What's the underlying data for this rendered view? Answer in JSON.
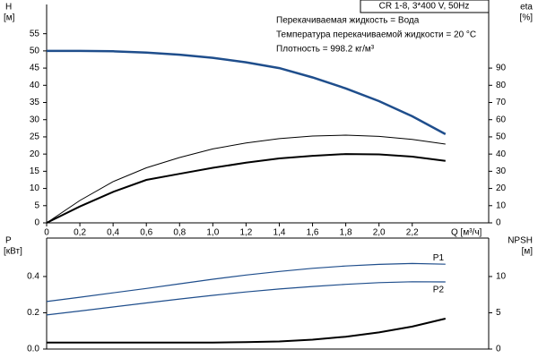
{
  "chart_data": [
    {
      "type": "line",
      "title": "CR 1-8, 3*400 V, 50Hz",
      "annotations": [
        "Перекачиваемая жидкость = Вода",
        "Температура перекачиваемой жидкости = 20 °C",
        "Плотность = 998.2 кг/м³"
      ],
      "ylabel": "H",
      "yunit": "[м]",
      "y2label": "eta",
      "y2unit": "[%]",
      "xlabel": "Q [м³/ч]",
      "xlim": [
        0,
        2.66
      ],
      "ylim": [
        0,
        63.5
      ],
      "y2lim": [
        0,
        127
      ],
      "xticks": [
        0,
        {
          "value": 0.2,
          "label": "0,2"
        },
        {
          "value": 0.4,
          "label": "0,4"
        },
        {
          "value": 0.6,
          "label": "0,6"
        },
        {
          "value": 0.8,
          "label": "0,8"
        },
        {
          "value": 1.0,
          "label": "1,0"
        },
        {
          "value": 1.2,
          "label": "1,2"
        },
        {
          "value": 1.4,
          "label": "1,4"
        },
        {
          "value": 1.6,
          "label": "1,6"
        },
        {
          "value": 1.8,
          "label": "1,8"
        },
        {
          "value": 2.0,
          "label": "2,0"
        },
        {
          "value": 2.2,
          "label": "2,2"
        }
      ],
      "yticks": [
        0,
        5,
        10,
        15,
        20,
        25,
        30,
        35,
        40,
        45,
        50,
        55
      ],
      "y2ticks": [
        0,
        10,
        20,
        30,
        40,
        50,
        60,
        70,
        80,
        90
      ],
      "series": [
        {
          "color": "#1f4e8c",
          "x": [
            0,
            0.2,
            0.4,
            0.6,
            0.8,
            1.0,
            1.2,
            1.4,
            1.6,
            1.8,
            2.0,
            2.2,
            2.4
          ],
          "values": [
            50,
            50,
            49.9,
            49.5,
            48.9,
            48,
            46.7,
            45,
            42.3,
            39.1,
            35.4,
            31,
            25.8
          ]
        },
        {
          "color": "#000000",
          "axis": "y2",
          "x": [
            0,
            0.2,
            0.4,
            0.6,
            0.8,
            1.0,
            1.2,
            1.4,
            1.6,
            1.8,
            2.0,
            2.2,
            2.4
          ],
          "values": [
            0,
            13,
            24,
            32,
            38,
            43,
            46.5,
            49,
            50.5,
            51,
            50.3,
            48.5,
            45.8
          ]
        },
        {
          "color": "#000000",
          "axis": "y2",
          "x": [
            0,
            0.2,
            0.4,
            0.6,
            0.8,
            1.0,
            1.2,
            1.4,
            1.6,
            1.8,
            2.0,
            2.2,
            2.4
          ],
          "values": [
            0,
            9.5,
            18,
            25,
            28.5,
            32,
            35,
            37.5,
            39,
            40,
            39.8,
            38.5,
            36
          ]
        }
      ]
    },
    {
      "type": "line",
      "ylabel": "P",
      "yunit": "[кВт]",
      "y2label": "NPSH",
      "y2unit": "[м]",
      "xlim": [
        0,
        2.66
      ],
      "ylim": [
        0,
        0.612
      ],
      "y2lim": [
        0,
        15.3
      ],
      "yticks": [
        {
          "value": 0,
          "label": "0.0"
        },
        0.2,
        0.4
      ],
      "y2ticks": [
        0,
        5,
        10
      ],
      "series": [
        {
          "name": "P1",
          "color": "#1f4e8c",
          "x": [
            0,
            0.2,
            0.4,
            0.6,
            0.8,
            1.0,
            1.2,
            1.4,
            1.6,
            1.8,
            2.0,
            2.2,
            2.4
          ],
          "values": [
            0.262,
            0.286,
            0.31,
            0.334,
            0.36,
            0.385,
            0.408,
            0.428,
            0.445,
            0.458,
            0.467,
            0.472,
            0.468
          ]
        },
        {
          "name": "P2",
          "color": "#1f4e8c",
          "x": [
            0,
            0.2,
            0.4,
            0.6,
            0.8,
            1.0,
            1.2,
            1.4,
            1.6,
            1.8,
            2.0,
            2.2,
            2.4
          ],
          "values": [
            0.188,
            0.21,
            0.232,
            0.254,
            0.276,
            0.296,
            0.315,
            0.331,
            0.345,
            0.357,
            0.366,
            0.371,
            0.37
          ]
        },
        {
          "color": "#000000",
          "axis": "y2",
          "x": [
            0,
            0.2,
            0.4,
            0.6,
            0.8,
            1.0,
            1.2,
            1.4,
            1.6,
            1.8,
            2.0,
            2.2,
            2.4
          ],
          "values": [
            0.9,
            0.9,
            0.9,
            0.9,
            0.9,
            0.9,
            0.95,
            1.05,
            1.3,
            1.7,
            2.3,
            3.1,
            4.2
          ]
        }
      ]
    }
  ]
}
